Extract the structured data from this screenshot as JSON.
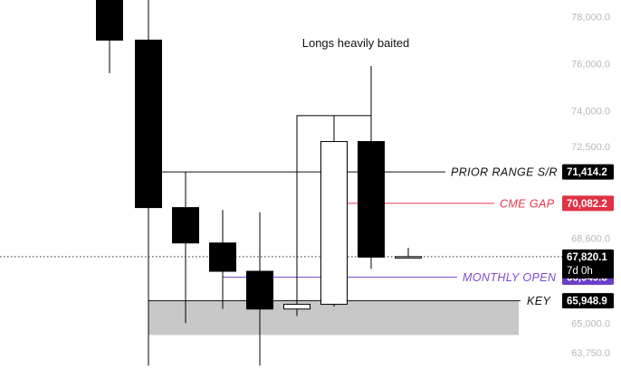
{
  "chart_data": {
    "type": "candlestick",
    "title": "",
    "xlabel": "",
    "ylabel": "",
    "ylim": [
      63100,
      78700
    ],
    "y_axis_side": "right",
    "grid": false,
    "y_ticks": [
      {
        "value": 78000,
        "label": "78,000.0"
      },
      {
        "value": 76000,
        "label": "76,000.0"
      },
      {
        "value": 74000,
        "label": "74,000.0"
      },
      {
        "value": 72500,
        "label": "72,500.0"
      },
      {
        "value": 68600,
        "label": "68,600.0"
      },
      {
        "value": 65000,
        "label": "65,000.0"
      },
      {
        "value": 63750,
        "label": "63,750.0"
      }
    ],
    "candles": [
      {
        "open": 79800,
        "high": 81500,
        "low": 75600,
        "close": 77000
      },
      {
        "open": 77000,
        "high": 81500,
        "low": 63200,
        "close": 69900
      },
      {
        "open": 69900,
        "high": 71400,
        "low": 65000,
        "close": 68400
      },
      {
        "open": 68400,
        "high": 69800,
        "low": 65600,
        "close": 67200
      },
      {
        "open": 67200,
        "high": 69700,
        "low": 63200,
        "close": 65600
      },
      {
        "open": 65600,
        "high": 65900,
        "low": 65300,
        "close": 65800
      },
      {
        "open": 65800,
        "high": 73800,
        "low": 65700,
        "close": 72700
      },
      {
        "open": 72700,
        "high": 75900,
        "low": 67300,
        "close": 67800
      },
      {
        "open": 67800,
        "high": 68200,
        "low": 67800,
        "close": 67820
      }
    ],
    "levels": [
      {
        "name": "PRIOR RANGE S/R",
        "value": 71414.2,
        "tag": "71,414.2",
        "color": "#111111",
        "tag_color": "#000000"
      },
      {
        "name": "CME GAP",
        "value": 70082.2,
        "tag": "70,082.2",
        "color": "#e8354f",
        "tag_color": "#e03145"
      },
      {
        "name": "MONTHLY OPEN",
        "value": 66949.8,
        "tag": "66,949.8",
        "color": "#7b4bd3",
        "tag_color": "#6a3fc8"
      },
      {
        "name": "KEY",
        "value": 65948.9,
        "tag": "65,948.9",
        "color": "#111111",
        "tag_color": "#000000"
      }
    ],
    "current_price": {
      "value": 67820.1,
      "tag": "67,820.1",
      "countdown": "7d 0h",
      "color": "#000000"
    },
    "zone": {
      "from": 64500,
      "to": 65948.9,
      "color": "#c8c8c8"
    },
    "annotation": {
      "text": "Longs heavily baited",
      "level": 73800
    },
    "colors": {
      "bull": "#ffffff",
      "bear": "#000000",
      "wick": "#000000"
    }
  }
}
